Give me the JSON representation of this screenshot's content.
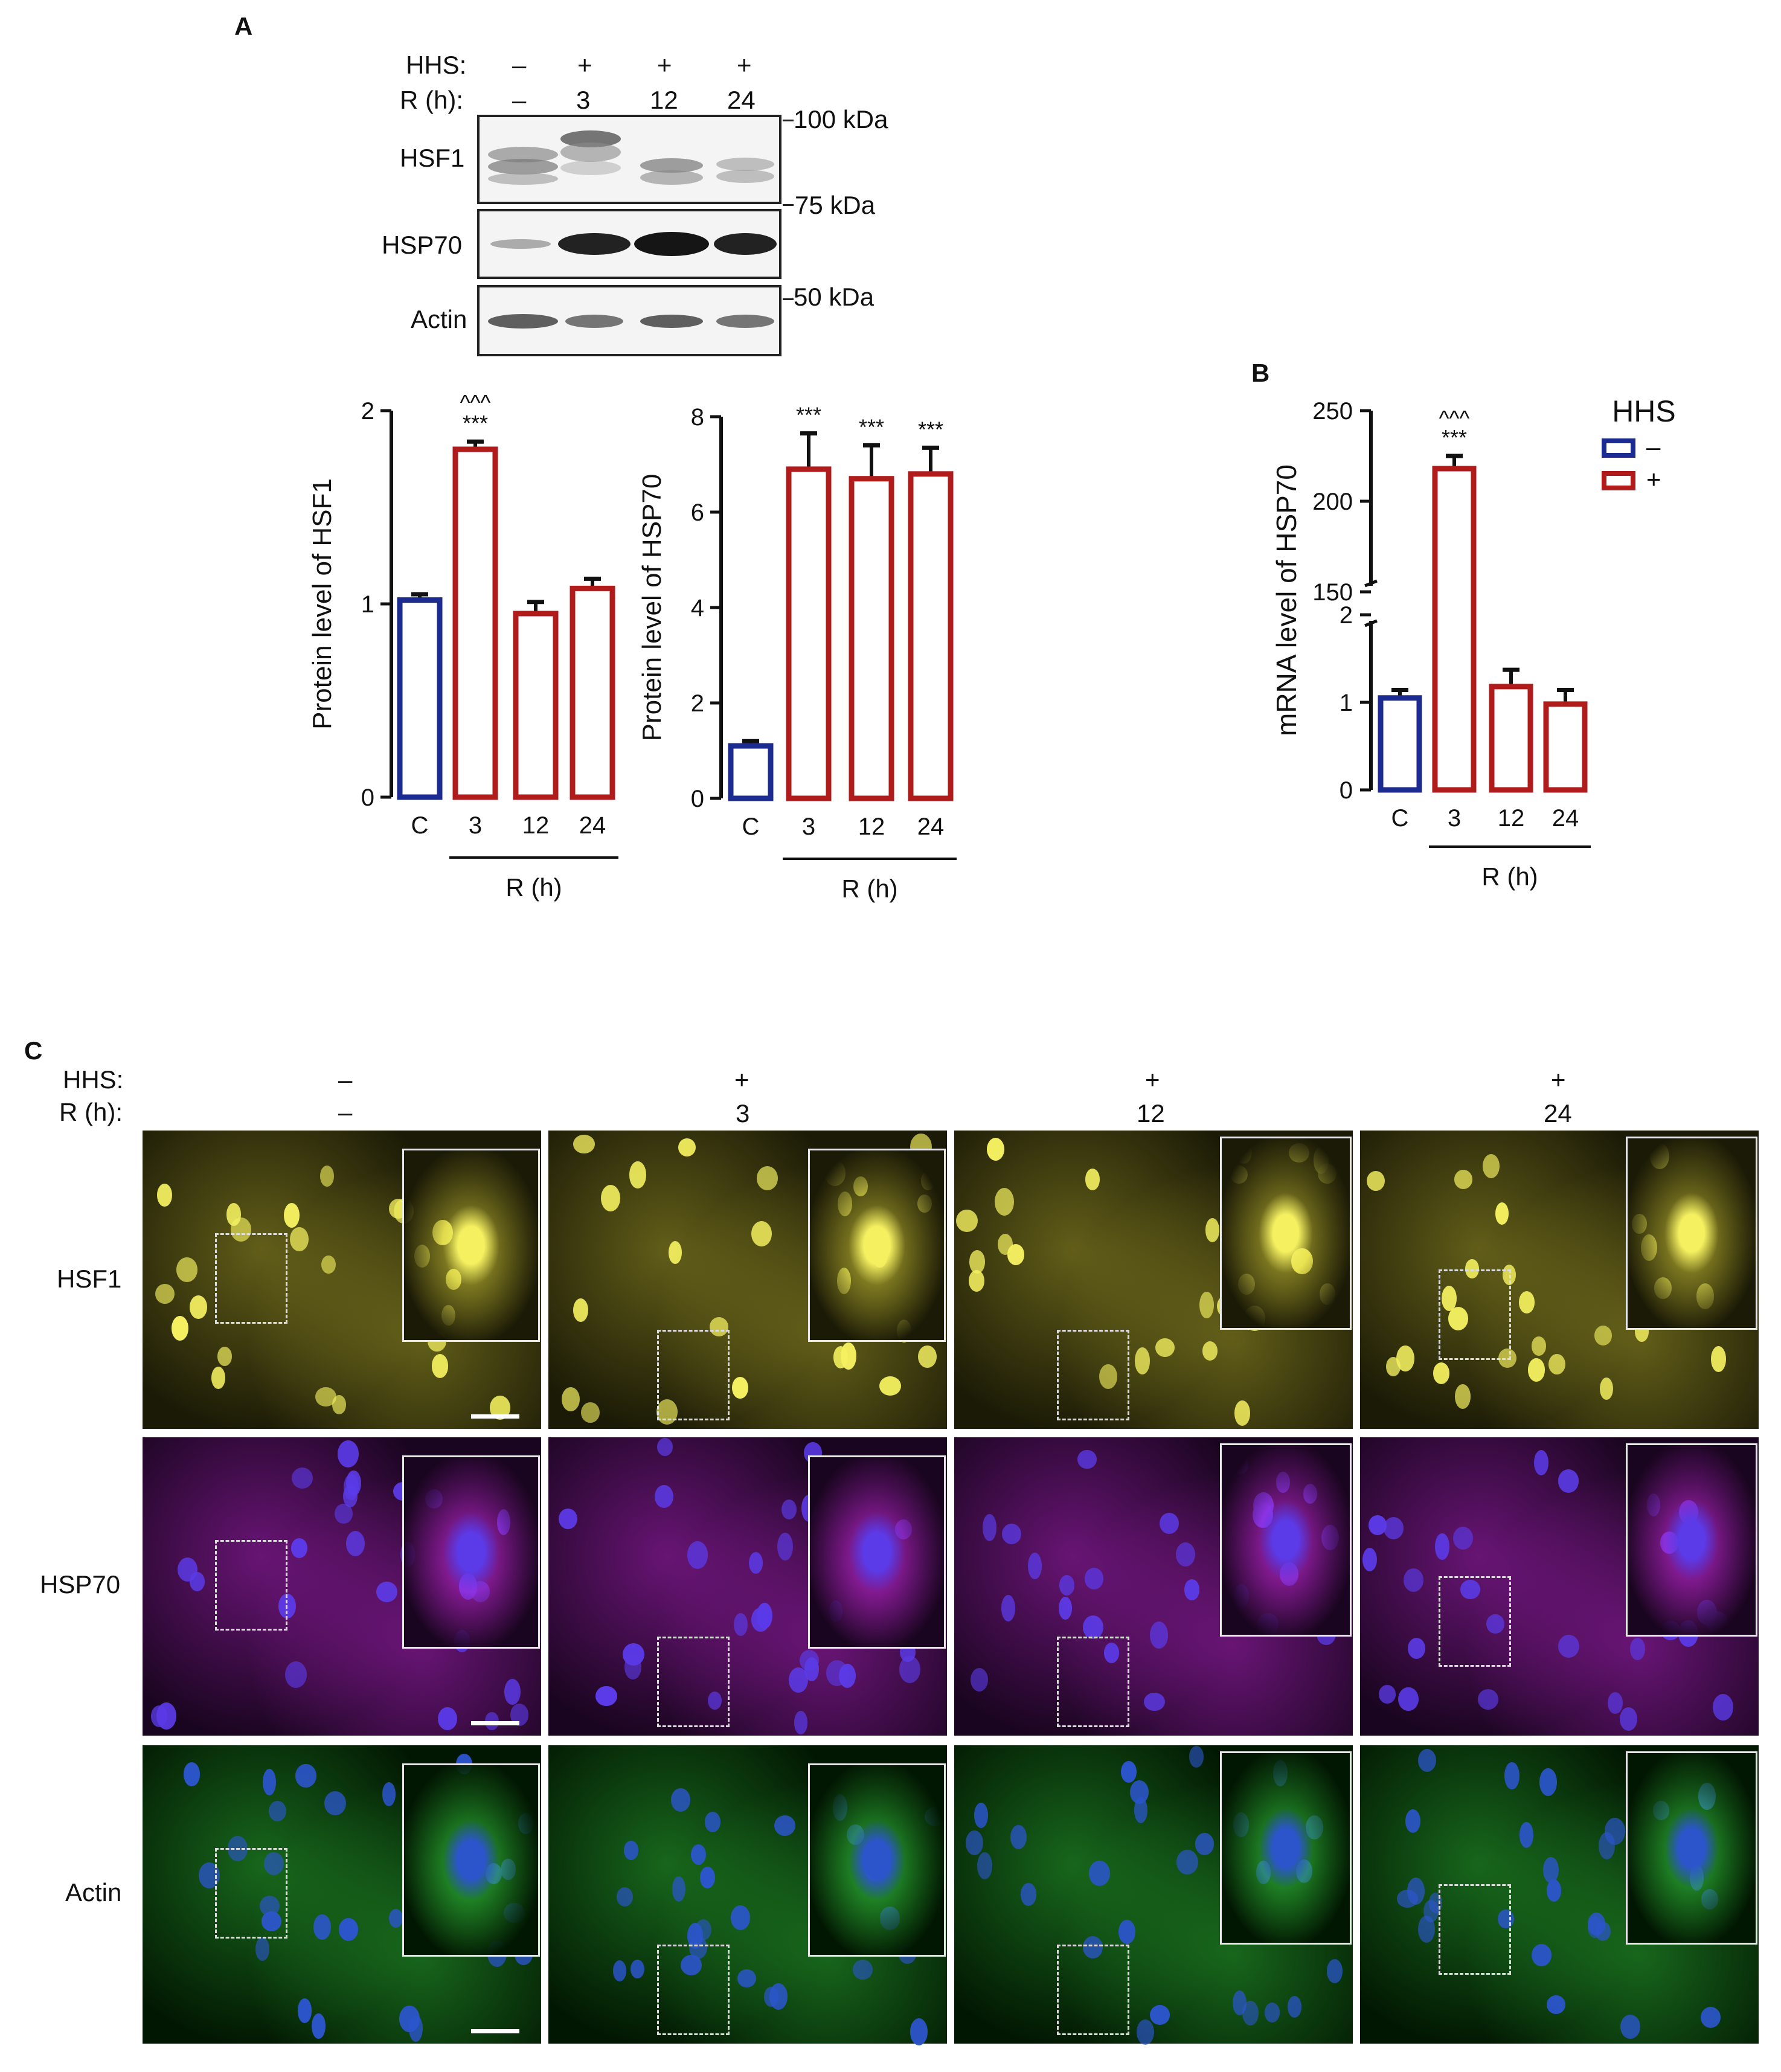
{
  "panels": {
    "a": "A",
    "b": "B",
    "c": "C"
  },
  "blot": {
    "hhs_label": "HHS:",
    "r_label": "R (h):",
    "hhs": [
      "–",
      "+",
      "+",
      "+"
    ],
    "r": [
      "–",
      "3",
      "12",
      "24"
    ],
    "rows": [
      "HSF1",
      "HSP70",
      "Actin"
    ],
    "markers": [
      "100 kDa",
      "75 kDa",
      "50 kDa"
    ]
  },
  "chart_data": [
    {
      "type": "bar",
      "ylabel": "Protein level of HSF1",
      "categories": [
        "C",
        "3",
        "12",
        "24"
      ],
      "group_label": "R (h)",
      "values": [
        1.02,
        1.8,
        0.95,
        1.08
      ],
      "errors": [
        0.03,
        0.04,
        0.06,
        0.05
      ],
      "ylim": [
        0,
        2
      ],
      "yticks": [
        "0",
        "1",
        "2"
      ],
      "significance": [
        "",
        "***",
        "",
        ""
      ],
      "significance2": [
        "",
        "^^^",
        "",
        ""
      ]
    },
    {
      "type": "bar",
      "ylabel": "Protein level of HSP70",
      "categories": [
        "C",
        "3",
        "12",
        "24"
      ],
      "group_label": "R (h)",
      "values": [
        1.1,
        6.9,
        6.7,
        6.8
      ],
      "errors": [
        0.1,
        0.75,
        0.7,
        0.55
      ],
      "ylim": [
        0,
        8
      ],
      "yticks": [
        "0",
        "2",
        "4",
        "6",
        "8"
      ],
      "significance": [
        "",
        "***",
        "***",
        "***"
      ]
    },
    {
      "type": "bar",
      "ylabel": "mRNA level of HSP70",
      "categories": [
        "C",
        "3",
        "12",
        "24"
      ],
      "group_label": "R (h)",
      "values": [
        1.05,
        218,
        1.18,
        0.98
      ],
      "errors": [
        0.05,
        5,
        0.15,
        0.12
      ],
      "yticks_lower": [
        "0",
        "1",
        "2"
      ],
      "yticks_upper": [
        "150",
        "200",
        "250"
      ],
      "axis_break": true,
      "significance": [
        "",
        "***",
        "",
        ""
      ],
      "significance2": [
        "",
        "^^^",
        "",
        ""
      ],
      "legend": {
        "title": "HHS",
        "entries": [
          "–",
          "+"
        ]
      }
    }
  ],
  "colors": {
    "control": "#1c2b8f",
    "treated": "#b01c1c"
  },
  "micro": {
    "hhs_label": "HHS:",
    "r_label": "R (h):",
    "hhs": [
      "–",
      "+",
      "+",
      "+"
    ],
    "r": [
      "–",
      "3",
      "12",
      "24"
    ],
    "rows": [
      "HSF1",
      "HSP70",
      "Actin"
    ]
  }
}
